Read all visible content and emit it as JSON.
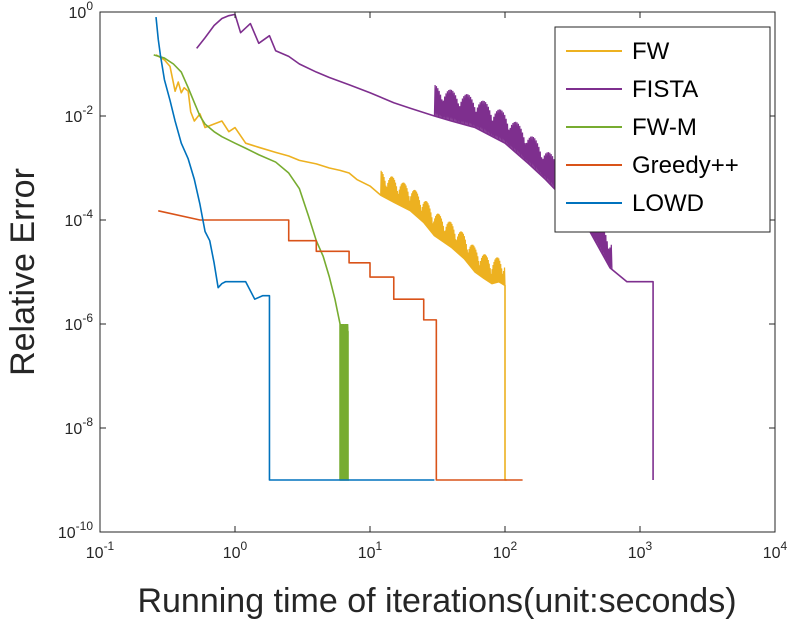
{
  "chart_data": {
    "type": "line",
    "xscale": "log",
    "yscale": "log",
    "xlim": [
      0.1,
      10000
    ],
    "ylim": [
      1e-10,
      1
    ],
    "xlabel": "Running time of iterations(unit:seconds)",
    "ylabel": "Relative Error",
    "xticks": [
      {
        "value": 0.1,
        "base": "10",
        "exp": "-1"
      },
      {
        "value": 1,
        "base": "10",
        "exp": "0"
      },
      {
        "value": 10,
        "base": "10",
        "exp": "1"
      },
      {
        "value": 100,
        "base": "10",
        "exp": "2"
      },
      {
        "value": 1000,
        "base": "10",
        "exp": "3"
      },
      {
        "value": 10000,
        "base": "10",
        "exp": "4"
      }
    ],
    "yticks": [
      {
        "value": 1,
        "base": "10",
        "exp": "0"
      },
      {
        "value": 0.01,
        "base": "10",
        "exp": "-2"
      },
      {
        "value": 0.0001,
        "base": "10",
        "exp": "-4"
      },
      {
        "value": 1e-06,
        "base": "10",
        "exp": "-6"
      },
      {
        "value": 1e-08,
        "base": "10",
        "exp": "-8"
      },
      {
        "value": 1e-10,
        "base": "10",
        "exp": "-10"
      }
    ],
    "legend_position": "top-right",
    "series": [
      {
        "name": "FW",
        "color": "#EDB120",
        "x": [
          0.26,
          0.3,
          0.33,
          0.36,
          0.38,
          0.4,
          0.42,
          0.45,
          0.47,
          0.5,
          0.55,
          0.6,
          0.7,
          0.8,
          0.9,
          1.0,
          1.2,
          1.5,
          2.0,
          2.5,
          3.0,
          4.0,
          5.0,
          6.0,
          7.0,
          8.0,
          10,
          12,
          15,
          20,
          25,
          30,
          40,
          50,
          60,
          70,
          80,
          90,
          95,
          100,
          100,
          101,
          103
        ],
        "y": [
          0.15,
          0.12,
          0.09,
          0.03,
          0.045,
          0.028,
          0.035,
          0.03,
          0.012,
          0.008,
          0.011,
          0.006,
          0.007,
          0.008,
          0.005,
          0.006,
          0.003,
          0.0025,
          0.002,
          0.0017,
          0.0014,
          0.0012,
          0.001,
          0.0009,
          0.0008,
          0.0006,
          0.00045,
          0.0003,
          0.00022,
          0.00015,
          9e-05,
          5e-05,
          3e-05,
          1.8e-05,
          1e-05,
          7.5e-06,
          6e-06,
          6.5e-06,
          6e-06,
          5.5e-06,
          1e-09,
          1e-09,
          1e-09
        ],
        "band": {
          "x0": 12,
          "x1": 100,
          "ratio": 3
        }
      },
      {
        "name": "FISTA",
        "color": "#7E2F8E",
        "x": [
          0.52,
          0.6,
          0.7,
          0.8,
          0.9,
          1.0,
          1.1,
          1.3,
          1.5,
          1.8,
          2.0,
          2.5,
          3,
          4,
          5,
          7,
          10,
          15,
          20,
          30,
          40,
          60,
          100,
          150,
          200,
          300,
          400,
          600,
          800,
          1000,
          1200,
          1250,
          1250
        ],
        "y": [
          0.2,
          0.32,
          0.55,
          0.75,
          0.85,
          0.9,
          0.4,
          0.6,
          0.25,
          0.35,
          0.18,
          0.14,
          0.1,
          0.07,
          0.055,
          0.04,
          0.028,
          0.018,
          0.014,
          0.01,
          0.008,
          0.006,
          0.003,
          0.0012,
          0.0006,
          0.0002,
          8e-05,
          1.2e-05,
          6.5e-06,
          6.5e-06,
          6.5e-06,
          6.5e-06,
          1e-09
        ],
        "band": {
          "x0": 30,
          "x1": 620,
          "ratio": 4
        }
      },
      {
        "name": "FW-M",
        "color": "#77AC30",
        "x": [
          0.25,
          0.3,
          0.35,
          0.4,
          0.45,
          0.5,
          0.55,
          0.6,
          0.7,
          0.8,
          1.0,
          1.2,
          1.5,
          2.0,
          2.5,
          3.0,
          3.5,
          4.0,
          4.5,
          5.0,
          5.5,
          6.0,
          6.0,
          6.5,
          7.0
        ],
        "y": [
          0.15,
          0.13,
          0.1,
          0.07,
          0.035,
          0.018,
          0.01,
          0.007,
          0.005,
          0.004,
          0.003,
          0.0024,
          0.0018,
          0.0013,
          0.0008,
          0.0004,
          0.00012,
          4e-05,
          2e-05,
          8e-06,
          3e-06,
          1e-06,
          1e-09,
          1e-09,
          1e-09
        ],
        "band": {
          "x0": 6.0,
          "x1": 6.9,
          "ratio": 1000
        }
      },
      {
        "name": "Greedy++",
        "color": "#D95319",
        "x": [
          0.27,
          0.55,
          0.55,
          2.5,
          2.5,
          4.0,
          4.0,
          7.0,
          7.0,
          10,
          10,
          15,
          15,
          25,
          25,
          31,
          31,
          135
        ],
        "y": [
          0.00015,
          0.0001,
          0.0001,
          0.0001,
          4e-05,
          4e-05,
          2.5e-05,
          2.5e-05,
          1.5e-05,
          1.5e-05,
          8e-06,
          8e-06,
          3e-06,
          3e-06,
          1.2e-06,
          1.2e-06,
          1e-09,
          1e-09
        ],
        "band": null
      },
      {
        "name": "LOWD",
        "color": "#0072BD",
        "x": [
          0.26,
          0.27,
          0.28,
          0.3,
          0.33,
          0.36,
          0.4,
          0.45,
          0.5,
          0.55,
          0.6,
          0.65,
          0.7,
          0.75,
          0.8,
          0.85,
          0.9,
          1.0,
          1.2,
          1.4,
          1.6,
          1.8,
          1.8,
          30
        ],
        "y": [
          0.8,
          0.3,
          0.15,
          0.05,
          0.02,
          0.008,
          0.003,
          0.0015,
          0.0006,
          0.0002,
          6e-05,
          4e-05,
          1.5e-05,
          5e-06,
          6e-06,
          6.5e-06,
          6.5e-06,
          6.5e-06,
          6.5e-06,
          3e-06,
          3.5e-06,
          3.5e-06,
          1e-09,
          1e-09
        ],
        "band": null
      }
    ]
  }
}
